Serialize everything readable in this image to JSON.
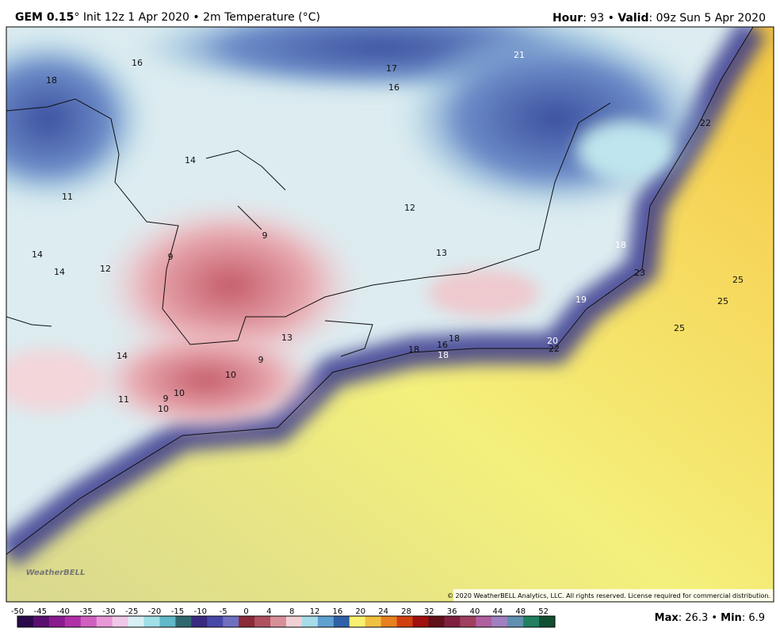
{
  "header": {
    "model": "GEM 0.15",
    "subtitle": "° Init 12z 1 Apr 2020 • 2m Temperature (°C)",
    "hour_label": "Hour",
    "hour_value": ": 93 • ",
    "valid_label": "Valid",
    "valid_value": ": 09z Sun 5 Apr 2020"
  },
  "map": {
    "labels": [
      18,
      16,
      17,
      16,
      21,
      22,
      14,
      11,
      12,
      9,
      13,
      9,
      14,
      14,
      12,
      18,
      23,
      25,
      25,
      19,
      25,
      13,
      14,
      9,
      10,
      18,
      16,
      18,
      18,
      20,
      22,
      10,
      9,
      11,
      10
    ],
    "copyright": "© 2020 WeatherBELL Analytics, LLC. All rights reserved. License required for commercial distribution.",
    "watermark": "WeatherBELL"
  },
  "colorbar": {
    "ticks": [
      -50,
      -45,
      -40,
      -35,
      -30,
      -25,
      -20,
      -15,
      -10,
      -5,
      0,
      4,
      8,
      12,
      16,
      20,
      24,
      28,
      32,
      36,
      40,
      44,
      48,
      52
    ]
  },
  "footer": {
    "max_label": "Max",
    "max_value": ": 26.3 • ",
    "min_label": "Min",
    "min_value": ": 6.9"
  }
}
